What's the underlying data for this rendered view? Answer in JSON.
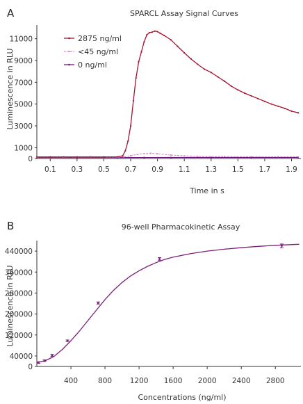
{
  "chart_data": [
    {
      "type": "line",
      "panel_label": "A",
      "title": "SPARCL Assay Signal Curves",
      "xlabel": "Time in s",
      "ylabel": "Luminescence in RLU",
      "xlim": [
        0,
        1.97
      ],
      "ylim": [
        0,
        12000
      ],
      "x_ticks": [
        "0.1",
        "0.3",
        "0.5",
        "0.7",
        "0.9",
        "1.1",
        "1.3",
        "1.5",
        "1.7",
        "1.9"
      ],
      "x_tick_values": [
        0.1,
        0.3,
        0.5,
        0.7,
        0.9,
        1.1,
        1.3,
        1.5,
        1.7,
        1.9
      ],
      "y_ticks": [
        "0",
        "1000",
        "3000",
        "5000",
        "7000",
        "9000",
        "11000"
      ],
      "y_tick_values": [
        0,
        1000,
        3000,
        5000,
        7000,
        9000,
        11000
      ],
      "grid": false,
      "legend_position": "top-left",
      "series": [
        {
          "name": "2875 ng/ml",
          "color": "#a3152f",
          "x": [
            0.0,
            0.1,
            0.2,
            0.3,
            0.4,
            0.5,
            0.6,
            0.64,
            0.66,
            0.68,
            0.7,
            0.72,
            0.74,
            0.76,
            0.78,
            0.8,
            0.82,
            0.84,
            0.86,
            0.88,
            0.9,
            0.92,
            0.95,
            1.0,
            1.05,
            1.1,
            1.15,
            1.2,
            1.25,
            1.3,
            1.35,
            1.4,
            1.45,
            1.5,
            1.55,
            1.6,
            1.65,
            1.7,
            1.75,
            1.8,
            1.85,
            1.9,
            1.95
          ],
          "y": [
            150,
            150,
            150,
            150,
            150,
            150,
            160,
            250,
            700,
            1600,
            3000,
            5300,
            7400,
            8900,
            9800,
            10700,
            11350,
            11550,
            11600,
            11700,
            11650,
            11500,
            11300,
            10900,
            10300,
            9700,
            9150,
            8650,
            8200,
            7900,
            7500,
            7100,
            6650,
            6300,
            6000,
            5750,
            5500,
            5250,
            5000,
            4800,
            4600,
            4350,
            4200
          ]
        },
        {
          "name": "<45 ng/ml",
          "color": "#d28ccf",
          "x": [
            0.0,
            0.2,
            0.4,
            0.6,
            0.65,
            0.7,
            0.75,
            0.8,
            0.85,
            0.9,
            1.0,
            1.1,
            1.2,
            1.4,
            1.6,
            1.8,
            1.95
          ],
          "y": [
            120,
            120,
            120,
            130,
            160,
            260,
            380,
            450,
            480,
            440,
            320,
            250,
            210,
            190,
            180,
            175,
            170
          ]
        },
        {
          "name": "0 ng/ml",
          "color": "#6b1a7a",
          "x": [
            0.0,
            0.3,
            0.6,
            0.8,
            1.0,
            1.3,
            1.6,
            1.95
          ],
          "y": [
            90,
            90,
            90,
            95,
            100,
            100,
            100,
            100
          ]
        }
      ]
    },
    {
      "type": "line",
      "panel_label": "B",
      "title": "96-well Pharmacokinetic Assay",
      "xlabel": "Concentrations (ng/ml)",
      "ylabel": "Luminescence in RLU",
      "xlim": [
        0,
        3100
      ],
      "ylim": [
        0,
        480000
      ],
      "x_ticks": [
        "400",
        "800",
        "1200",
        "1600",
        "2000",
        "2400",
        "2800"
      ],
      "x_tick_values": [
        400,
        800,
        1200,
        1600,
        2000,
        2400,
        2800
      ],
      "y_ticks": [
        "0",
        "40000",
        "120000",
        "200000",
        "280000",
        "360000",
        "440000"
      ],
      "y_tick_values": [
        0,
        40000,
        120000,
        200000,
        280000,
        360000,
        440000
      ],
      "grid": false,
      "series": [
        {
          "color": "#7a1f7a",
          "points": {
            "x": [
              20,
              90,
              180,
              360,
              720,
              1440,
              2875
            ],
            "y": [
              15000,
              22000,
              42000,
              98000,
              242000,
              410000,
              460000
            ],
            "err": [
              3000,
              3000,
              4000,
              3000,
              4000,
              5000,
              7000
            ]
          },
          "curve": {
            "x": [
              0,
              100,
              200,
              300,
              400,
              500,
              600,
              700,
              800,
              900,
              1000,
              1100,
              1200,
              1300,
              1400,
              1500,
              1600,
              1800,
              2000,
              2200,
              2400,
              2600,
              2800,
              3000,
              3080
            ],
            "y": [
              15000,
              22000,
              38000,
              65000,
              98000,
              135000,
              175000,
              215000,
              255000,
              290000,
              320000,
              345000,
              365000,
              382000,
              396000,
              408000,
              417000,
              430000,
              440000,
              447000,
              453000,
              458000,
              462000,
              465000,
              466000
            ]
          }
        }
      ]
    }
  ]
}
